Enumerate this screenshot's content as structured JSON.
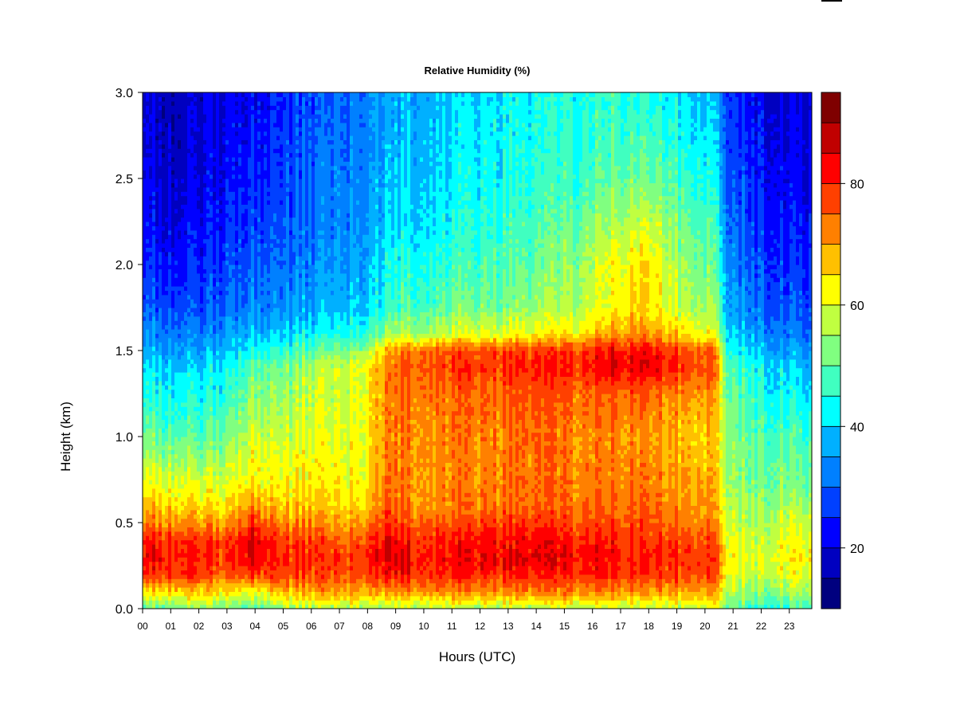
{
  "chart_data": {
    "type": "heatmap",
    "title": "Relative Humidity (%)",
    "xlabel": "Hours (UTC)",
    "ylabel": "Height (km)",
    "x_tick_labels": [
      "00",
      "01",
      "02",
      "03",
      "04",
      "05",
      "06",
      "07",
      "08",
      "09",
      "10",
      "11",
      "12",
      "13",
      "14",
      "15",
      "16",
      "17",
      "18",
      "19",
      "20",
      "21",
      "22",
      "23"
    ],
    "x_range_hours": [
      0,
      23.8
    ],
    "y_ticks": [
      "0.0",
      "0.5",
      "1.0",
      "1.5",
      "2.0",
      "2.5",
      "3.0"
    ],
    "y_range_km": [
      0,
      3
    ],
    "colorbar": {
      "range": [
        10,
        95
      ],
      "level_step": 5,
      "tick_labels": [
        "20",
        "40",
        "60",
        "80"
      ],
      "colors": [
        "#00007f",
        "#0000c0",
        "#0000ff",
        "#0040ff",
        "#0080ff",
        "#00b0ff",
        "#00ffff",
        "#40ffc0",
        "#80ff80",
        "#c0ff40",
        "#ffff00",
        "#ffc000",
        "#ff8000",
        "#ff4000",
        "#ff0000",
        "#c00000",
        "#7f0000"
      ]
    },
    "profile_heights_km": [
      0.0,
      0.1,
      0.2,
      0.3,
      0.4,
      0.5,
      0.6,
      0.75,
      1.0,
      1.25,
      1.4,
      1.5,
      1.6,
      1.75,
      2.0,
      2.25,
      2.5,
      2.75,
      3.0
    ],
    "time_profiles": [
      {
        "hour": 0,
        "rh": [
          50,
          65,
          80,
          84,
          82,
          74,
          68,
          62,
          52,
          45,
          42,
          38,
          35,
          30,
          26,
          24,
          22,
          21,
          20
        ]
      },
      {
        "hour": 1,
        "rh": [
          52,
          66,
          80,
          82,
          80,
          72,
          66,
          60,
          50,
          44,
          40,
          36,
          33,
          28,
          24,
          21,
          19,
          18,
          17
        ]
      },
      {
        "hour": 2,
        "rh": [
          52,
          66,
          78,
          80,
          78,
          70,
          64,
          58,
          48,
          42,
          39,
          35,
          31,
          27,
          24,
          21,
          19,
          18,
          18
        ]
      },
      {
        "hour": 3,
        "rh": [
          52,
          64,
          76,
          80,
          78,
          70,
          64,
          60,
          52,
          46,
          43,
          40,
          36,
          31,
          28,
          25,
          23,
          22,
          21
        ]
      },
      {
        "hour": 3.9,
        "rh": [
          48,
          62,
          80,
          86,
          86,
          80,
          72,
          64,
          60,
          54,
          50,
          44,
          38,
          34,
          30,
          28,
          26,
          24,
          22
        ]
      },
      {
        "hour": 5,
        "rh": [
          55,
          68,
          78,
          80,
          78,
          72,
          66,
          62,
          58,
          54,
          52,
          46,
          40,
          34,
          31,
          29,
          27,
          26,
          25
        ]
      },
      {
        "hour": 6,
        "rh": [
          56,
          70,
          78,
          80,
          78,
          72,
          68,
          64,
          60,
          58,
          56,
          50,
          42,
          36,
          33,
          31,
          30,
          29,
          28
        ]
      },
      {
        "hour": 7,
        "rh": [
          56,
          70,
          76,
          78,
          74,
          68,
          64,
          62,
          60,
          58,
          58,
          52,
          44,
          38,
          35,
          33,
          32,
          31,
          30
        ]
      },
      {
        "hour": 8,
        "rh": [
          56,
          70,
          78,
          80,
          78,
          72,
          66,
          64,
          62,
          62,
          62,
          56,
          46,
          40,
          37,
          35,
          34,
          33,
          33
        ]
      },
      {
        "hour": 8.6,
        "rh": [
          54,
          70,
          82,
          86,
          84,
          80,
          76,
          74,
          72,
          72,
          72,
          68,
          54,
          46,
          43,
          40,
          38,
          37,
          36
        ]
      },
      {
        "hour": 9.5,
        "rh": [
          56,
          72,
          80,
          82,
          80,
          76,
          72,
          72,
          72,
          74,
          76,
          74,
          56,
          48,
          44,
          41,
          39,
          38,
          37
        ]
      },
      {
        "hour": 11,
        "rh": [
          56,
          72,
          80,
          82,
          80,
          76,
          72,
          72,
          72,
          74,
          78,
          76,
          58,
          50,
          46,
          43,
          41,
          40,
          39
        ]
      },
      {
        "hour": 12.5,
        "rh": [
          56,
          72,
          80,
          84,
          82,
          78,
          74,
          72,
          72,
          75,
          78,
          77,
          60,
          52,
          48,
          45,
          43,
          42,
          41
        ]
      },
      {
        "hour": 14,
        "rh": [
          56,
          72,
          80,
          84,
          82,
          78,
          74,
          74,
          74,
          76,
          80,
          78,
          62,
          54,
          50,
          48,
          45,
          44,
          43
        ]
      },
      {
        "hour": 15.5,
        "rh": [
          56,
          72,
          80,
          82,
          80,
          76,
          74,
          72,
          72,
          74,
          80,
          78,
          64,
          56,
          54,
          50,
          46,
          45,
          44
        ]
      },
      {
        "hour": 16.8,
        "rh": [
          58,
          72,
          80,
          82,
          80,
          76,
          74,
          72,
          72,
          76,
          84,
          82,
          70,
          62,
          62,
          56,
          50,
          47,
          46
        ]
      },
      {
        "hour": 17.3,
        "rh": [
          58,
          72,
          80,
          82,
          80,
          78,
          76,
          74,
          72,
          76,
          84,
          82,
          72,
          66,
          64,
          58,
          52,
          48,
          46
        ]
      },
      {
        "hour": 18,
        "rh": [
          58,
          72,
          80,
          82,
          80,
          78,
          76,
          74,
          72,
          76,
          86,
          84,
          72,
          66,
          66,
          60,
          53,
          48,
          45
        ]
      },
      {
        "hour": 19,
        "rh": [
          58,
          70,
          78,
          80,
          78,
          74,
          72,
          70,
          68,
          72,
          80,
          78,
          66,
          58,
          56,
          52,
          48,
          44,
          42
        ]
      },
      {
        "hour": 20.3,
        "rh": [
          58,
          70,
          78,
          78,
          76,
          72,
          70,
          68,
          66,
          70,
          76,
          74,
          60,
          54,
          50,
          47,
          43,
          40,
          38
        ]
      },
      {
        "hour": 20.8,
        "rh": [
          52,
          58,
          62,
          64,
          62,
          60,
          58,
          56,
          54,
          52,
          50,
          46,
          42,
          38,
          35,
          32,
          30,
          28,
          27
        ]
      },
      {
        "hour": 21.8,
        "rh": [
          46,
          54,
          58,
          60,
          58,
          56,
          54,
          52,
          50,
          46,
          44,
          40,
          36,
          32,
          29,
          27,
          25,
          24,
          23
        ]
      },
      {
        "hour": 22.8,
        "rh": [
          46,
          54,
          60,
          62,
          60,
          58,
          55,
          52,
          48,
          42,
          40,
          36,
          32,
          28,
          25,
          23,
          21,
          20,
          19
        ]
      },
      {
        "hour": 23.8,
        "rh": [
          46,
          56,
          60,
          62,
          60,
          58,
          54,
          50,
          46,
          40,
          37,
          34,
          30,
          27,
          24,
          22,
          20,
          19,
          18
        ]
      }
    ]
  }
}
